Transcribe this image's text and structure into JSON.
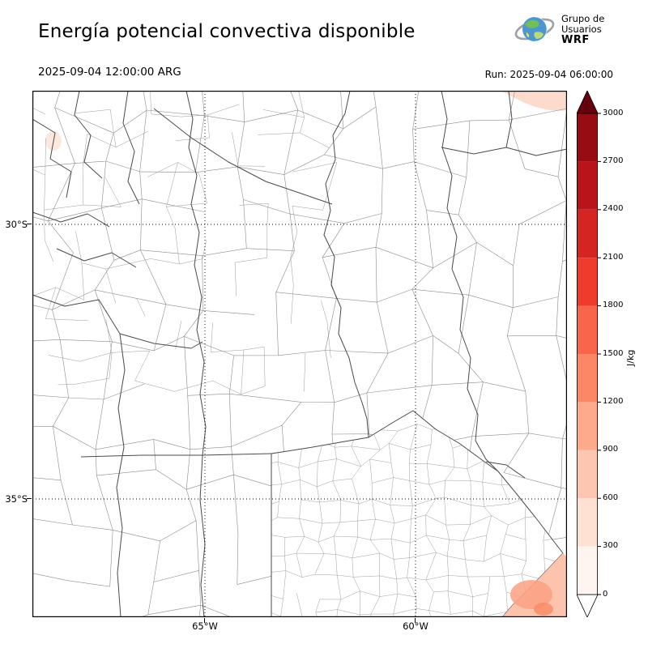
{
  "header": {
    "title": "Energía potencial convectiva disponible",
    "valid_time": "2025-09-04 12:00:00 ARG",
    "run_time": "Run: 2025-09-04 06:00:00",
    "logo": {
      "line1": "Grupo de",
      "line2": "Usuarios",
      "line3": "WRF"
    }
  },
  "axes": {
    "lat_ticks": [
      "30°S",
      "35°S"
    ],
    "lon_ticks": [
      "65°W",
      "60°W"
    ]
  },
  "colorbar": {
    "unit": "J/kg",
    "ticks": [
      "3000",
      "2700",
      "2400",
      "2100",
      "1800",
      "1500",
      "1200",
      "900",
      "600",
      "300",
      "0"
    ],
    "segments": [
      "#fff5f0",
      "#fee1d3",
      "#fdc6b0",
      "#fca98c",
      "#fc8767",
      "#f8654a",
      "#ef3b2c",
      "#d42522",
      "#b81419",
      "#970b13"
    ],
    "over_color": "#67000d",
    "under_color": "#ffffff"
  },
  "chart_data": {
    "type": "heatmap",
    "title": "Energía potencial convectiva disponible",
    "variable": "CAPE (convective available potential energy)",
    "unit": "J/kg",
    "valid_time": "2025-09-04 12:00:00 ARG",
    "run_time": "2025-09-04 06:00:00",
    "colorbar_levels": [
      0,
      300,
      600,
      900,
      1200,
      1500,
      1800,
      2100,
      2400,
      2700,
      3000
    ],
    "lat_ticks_deg_s": [
      30,
      35
    ],
    "lon_ticks_deg_w": [
      65,
      60
    ],
    "approx_extent": {
      "lon_deg_w": [
        69.1,
        56.4
      ],
      "lat_deg_s": [
        27.6,
        37.2
      ]
    },
    "field_summary": "CAPE near 0 J/kg over almost the whole domain; weak values (<=600 J/kg) at the far northeast corner and over the Atlantic ocean off the southeast coast of Buenos Aires"
  }
}
